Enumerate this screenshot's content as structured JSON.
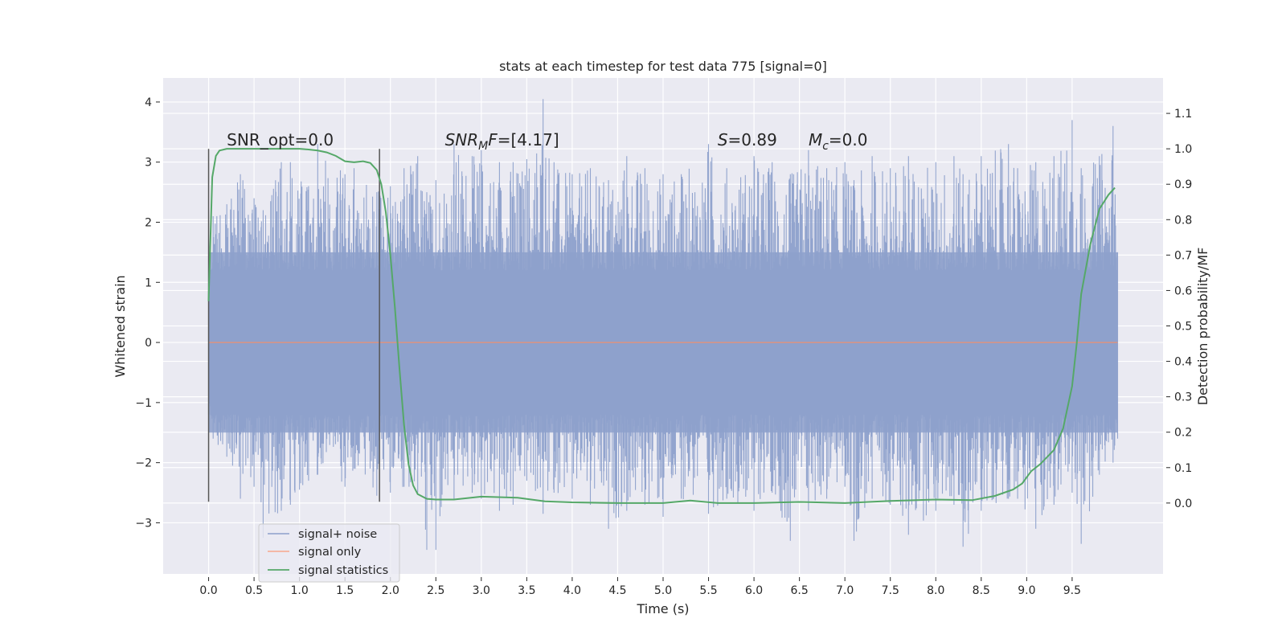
{
  "chart_data": {
    "type": "line",
    "title": "stats at each timestep for test data 775 [signal=0]",
    "xlabel": "Time (s)",
    "ylabel": "Whitened strain",
    "y2label": "Detection probability/MF",
    "xlim": [
      -0.5,
      10.5
    ],
    "ylim": [
      -3.85,
      4.4
    ],
    "y2lim": [
      -0.2,
      1.2
    ],
    "xticks": [
      0.0,
      0.5,
      1.0,
      1.5,
      2.0,
      2.5,
      3.0,
      3.5,
      4.0,
      4.5,
      5.0,
      5.5,
      6.0,
      6.5,
      7.0,
      7.5,
      8.0,
      8.5,
      9.0,
      9.5
    ],
    "xtick_labels": [
      "0.0",
      "0.5",
      "1.0",
      "1.5",
      "2.0",
      "2.5",
      "3.0",
      "3.5",
      "4.0",
      "4.5",
      "5.0",
      "5.5",
      "6.0",
      "6.5",
      "7.0",
      "7.5",
      "8.0",
      "8.5",
      "9.0",
      "9.5"
    ],
    "yticks": [
      4,
      3,
      2,
      1,
      0,
      -1,
      -2,
      -3
    ],
    "ytick_labels": [
      "4",
      "3",
      "2",
      "1",
      "0",
      "−1",
      "−2",
      "−3"
    ],
    "y2ticks": [
      1.1,
      1.0,
      0.9,
      0.8,
      0.7,
      0.6,
      0.5,
      0.4,
      0.3,
      0.2,
      0.1,
      0.0
    ],
    "y2tick_labels": [
      "1.1",
      "1.0",
      "0.9",
      "0.8",
      "0.7",
      "0.6",
      "0.5",
      "0.4",
      "0.3",
      "0.2",
      "0.1",
      "0.0"
    ],
    "grid": true,
    "legend_position": "lower-left",
    "annotations": [
      {
        "text": "SNR_opt=0.0",
        "x": 0.2,
        "y": 3.28
      },
      {
        "text": "SNR_MF=[4.17]",
        "x": 2.6,
        "y": 3.28
      },
      {
        "text": "S=0.89",
        "x": 5.6,
        "y": 3.28
      },
      {
        "text": "M_c=0.0",
        "x": 6.6,
        "y": 3.28
      }
    ],
    "window_markers": [
      {
        "x": 0.0,
        "y_range": [
          -2.65,
          3.22
        ]
      },
      {
        "x": 1.88,
        "y_range": [
          -2.65,
          3.22
        ]
      }
    ],
    "series": [
      {
        "name": "signal+ noise",
        "color": "#8da0cb",
        "style": "dense noise trace",
        "x_range": [
          0.0,
          10.0
        ],
        "band": [
          -1.5,
          1.5
        ],
        "peak_envelope": [
          [
            0.0,
            -0.75,
            1.25
          ],
          [
            0.05,
            -1.6,
            2.1
          ],
          [
            0.2,
            -1.9,
            2.3
          ],
          [
            0.35,
            -2.6,
            2.8
          ],
          [
            0.5,
            -2.4,
            2.4
          ],
          [
            0.6,
            -3.25,
            2.2
          ],
          [
            0.8,
            -2.8,
            3.0
          ],
          [
            0.9,
            -2.7,
            3.0
          ],
          [
            1.1,
            -2.3,
            2.6
          ],
          [
            1.2,
            -2.2,
            3.3
          ],
          [
            1.5,
            -2.4,
            2.8
          ],
          [
            1.6,
            -2.1,
            2.9
          ],
          [
            1.85,
            -2.55,
            2.5
          ],
          [
            2.0,
            -2.5,
            2.6
          ],
          [
            2.15,
            -2.4,
            2.9
          ],
          [
            2.3,
            -2.5,
            3.1
          ],
          [
            2.4,
            -3.45,
            2.5
          ],
          [
            2.5,
            -3.45,
            2.7
          ],
          [
            2.7,
            -2.6,
            3.3
          ],
          [
            2.9,
            -2.5,
            3.1
          ],
          [
            3.0,
            -2.6,
            3.2
          ],
          [
            3.2,
            -2.8,
            3.0
          ],
          [
            3.35,
            -2.7,
            3.0
          ],
          [
            3.5,
            -2.3,
            3.05
          ],
          [
            3.68,
            -2.85,
            4.05
          ],
          [
            3.8,
            -2.5,
            3.0
          ],
          [
            4.0,
            -2.6,
            2.8
          ],
          [
            4.2,
            -2.7,
            2.9
          ],
          [
            4.4,
            -3.1,
            2.7
          ],
          [
            4.6,
            -2.8,
            3.1
          ],
          [
            4.8,
            -2.7,
            2.9
          ],
          [
            5.0,
            -2.9,
            2.8
          ],
          [
            5.2,
            -2.6,
            2.8
          ],
          [
            5.5,
            -2.85,
            3.3
          ],
          [
            5.7,
            -2.6,
            2.9
          ],
          [
            6.0,
            -2.8,
            3.1
          ],
          [
            6.2,
            -2.5,
            3.0
          ],
          [
            6.4,
            -3.3,
            2.8
          ],
          [
            6.6,
            -2.8,
            3.2
          ],
          [
            6.8,
            -2.6,
            2.9
          ],
          [
            7.0,
            -2.4,
            3.0
          ],
          [
            7.1,
            -3.3,
            2.7
          ],
          [
            7.3,
            -2.6,
            3.1
          ],
          [
            7.5,
            -2.7,
            2.9
          ],
          [
            7.7,
            -3.2,
            3.1
          ],
          [
            8.0,
            -2.8,
            3.0
          ],
          [
            8.2,
            -2.7,
            3.1
          ],
          [
            8.3,
            -3.4,
            2.8
          ],
          [
            8.5,
            -2.8,
            3.1
          ],
          [
            8.8,
            -2.6,
            3.3
          ],
          [
            8.9,
            -2.6,
            2.9
          ],
          [
            9.1,
            -3.1,
            3.0
          ],
          [
            9.3,
            -2.7,
            3.1
          ],
          [
            9.5,
            -2.5,
            3.7
          ],
          [
            9.6,
            -3.35,
            2.9
          ],
          [
            9.8,
            -2.2,
            3.1
          ],
          [
            9.95,
            -2.0,
            3.6
          ],
          [
            10.0,
            -1.6,
            1.5
          ]
        ]
      },
      {
        "name": "signal only",
        "color": "#fc8d62",
        "x": [
          0.0,
          10.0
        ],
        "y": [
          0.0,
          0.0
        ]
      },
      {
        "name": "signal statistics",
        "color": "#55a868",
        "axis": "right",
        "x": [
          0.0,
          0.04,
          0.08,
          0.12,
          0.2,
          0.3,
          0.5,
          0.8,
          1.0,
          1.1,
          1.2,
          1.3,
          1.4,
          1.5,
          1.6,
          1.7,
          1.78,
          1.85,
          1.9,
          1.95,
          2.0,
          2.05,
          2.1,
          2.15,
          2.2,
          2.25,
          2.3,
          2.4,
          2.5,
          2.7,
          3.0,
          3.4,
          3.7,
          4.0,
          4.5,
          5.0,
          5.3,
          5.6,
          6.0,
          6.5,
          7.0,
          7.5,
          8.0,
          8.4,
          8.65,
          8.85,
          8.95,
          9.05,
          9.15,
          9.3,
          9.4,
          9.5,
          9.55,
          9.6,
          9.7,
          9.8,
          9.9,
          9.97
        ],
        "y": [
          0.57,
          0.92,
          0.98,
          0.995,
          1.0,
          1.0,
          1.0,
          1.0,
          1.0,
          0.998,
          0.995,
          0.99,
          0.98,
          0.965,
          0.962,
          0.965,
          0.96,
          0.94,
          0.9,
          0.82,
          0.7,
          0.55,
          0.38,
          0.22,
          0.11,
          0.05,
          0.025,
          0.012,
          0.01,
          0.01,
          0.018,
          0.015,
          0.005,
          0.002,
          0.0,
          0.0,
          0.007,
          0.0,
          0.0,
          0.003,
          0.0,
          0.006,
          0.01,
          0.008,
          0.02,
          0.038,
          0.055,
          0.09,
          0.11,
          0.15,
          0.21,
          0.33,
          0.45,
          0.59,
          0.73,
          0.83,
          0.87,
          0.89
        ]
      }
    ]
  }
}
